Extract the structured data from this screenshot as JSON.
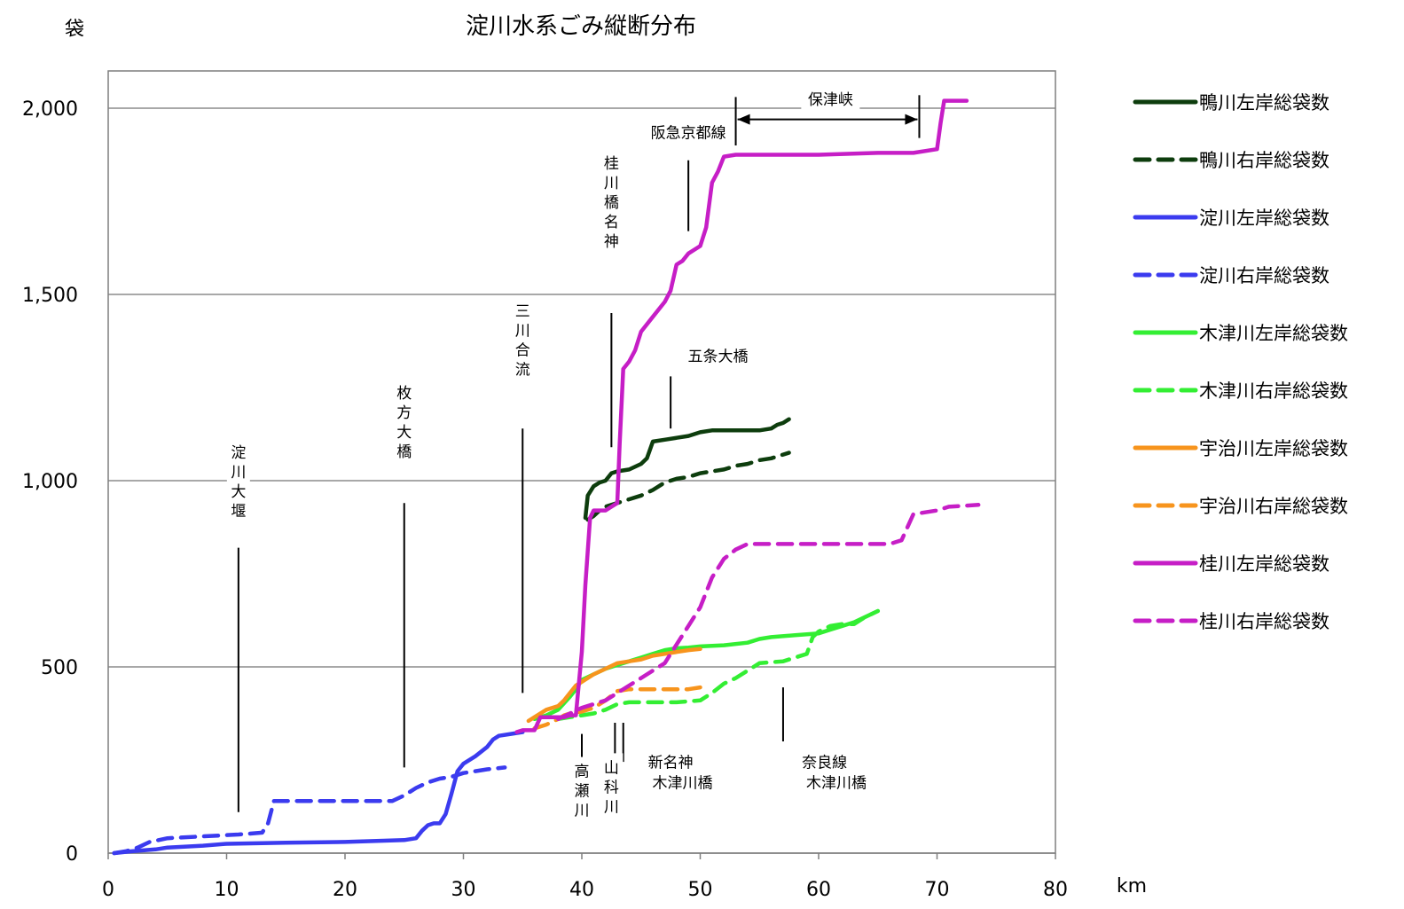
{
  "chart_data": {
    "type": "line",
    "title": "淀川水系ごみ縦断分布",
    "ylabel": "袋",
    "xlabel": "km",
    "xlim": [
      0,
      80
    ],
    "ylim": [
      0,
      2000
    ],
    "xticks": [
      0,
      10,
      20,
      30,
      40,
      50,
      60,
      70,
      80
    ],
    "yticks": [
      0,
      500,
      1000,
      1500,
      2000
    ],
    "ytick_labels": [
      "0",
      "500",
      "1,000",
      "1,500",
      "2,000"
    ],
    "grid": true,
    "legend_position": "right",
    "annotations": [
      {
        "text": "淀川大堰",
        "vertical": true,
        "x": 11,
        "label_y": 1000
      },
      {
        "text": "枚方大橋",
        "vertical": true,
        "x": 25,
        "label_y": 1160
      },
      {
        "text": "三川合流",
        "vertical": true,
        "x": 35,
        "label_y": 1380
      },
      {
        "text": "桂川橋名神",
        "vertical": true,
        "x": 42.5,
        "label_y": 1750
      },
      {
        "text": "阪急京都線",
        "vertical": false,
        "x": 49,
        "label_y": 1920
      },
      {
        "text": "五条大橋",
        "vertical": false,
        "x": 51.5,
        "label_y": 1320
      },
      {
        "text": "保津峡",
        "vertical": false,
        "x": 61,
        "label_y": 2010
      },
      {
        "text": "高瀬川",
        "vertical": true,
        "x": 40,
        "label_y": 170
      },
      {
        "text": "山科川",
        "vertical": true,
        "x": 42.5,
        "label_y": 180
      },
      {
        "text": "新名神",
        "vertical": false,
        "x": 47.5,
        "label_y": 230
      },
      {
        "text": "木津川橋",
        "vertical": false,
        "x": 48.5,
        "label_y": 175
      },
      {
        "text": "奈良線",
        "vertical": false,
        "x": 60.5,
        "label_y": 230
      },
      {
        "text": "木津川橋",
        "vertical": false,
        "x": 61.5,
        "label_y": 175
      }
    ],
    "markers": [
      {
        "x": 11,
        "y1": 110,
        "y2": 820
      },
      {
        "x": 25,
        "y1": 230,
        "y2": 940
      },
      {
        "x": 35,
        "y1": 430,
        "y2": 1140
      },
      {
        "x": 42.5,
        "y1": 1090,
        "y2": 1450
      },
      {
        "x": 49,
        "y1": 1670,
        "y2": 1860
      },
      {
        "x": 47.5,
        "y1": 1140,
        "y2": 1280
      },
      {
        "x": 40,
        "y1": 235,
        "y2": 320
      },
      {
        "x": 42.8,
        "y1": 240,
        "y2": 350
      },
      {
        "x": 43.5,
        "y1": 245,
        "y2": 350
      },
      {
        "x": 57,
        "y1": 300,
        "y2": 445
      },
      {
        "x": 53,
        "y1": 1900,
        "y2": 2030
      },
      {
        "x": 68.5,
        "y1": 1920,
        "y2": 2035
      }
    ],
    "span_arrow": {
      "x1": 53,
      "x2": 68.5,
      "y": 1970
    },
    "series": [
      {
        "name": "鴨川左岸総袋数",
        "color": "#0d3d0d",
        "dash": false,
        "x": [
          40.3,
          40.5,
          41,
          41.5,
          42,
          42.5,
          43,
          44,
          45,
          45.5,
          46,
          47,
          48,
          49,
          50,
          51,
          52,
          53,
          54,
          55,
          56,
          56.5,
          57,
          57.5
        ],
        "y": [
          900,
          960,
          985,
          995,
          1000,
          1020,
          1025,
          1030,
          1045,
          1060,
          1105,
          1110,
          1115,
          1120,
          1130,
          1135,
          1135,
          1135,
          1135,
          1135,
          1140,
          1150,
          1155,
          1165
        ]
      },
      {
        "name": "鴨川右岸総袋数",
        "color": "#0d3d0d",
        "dash": true,
        "x": [
          40.5,
          41,
          41.5,
          42,
          43,
          44,
          45,
          46,
          47,
          48,
          49,
          50,
          51,
          52,
          53,
          54,
          55,
          56,
          57,
          57.5
        ],
        "y": [
          895,
          905,
          920,
          930,
          940,
          950,
          960,
          975,
          995,
          1005,
          1010,
          1020,
          1025,
          1030,
          1040,
          1045,
          1055,
          1060,
          1070,
          1075
        ]
      },
      {
        "name": "淀川左岸総袋数",
        "color": "#3b3bef",
        "dash": false,
        "x": [
          0.5,
          2,
          4,
          5,
          8,
          10,
          15,
          20,
          25,
          26,
          26.5,
          27,
          27.5,
          28,
          28.5,
          29,
          29.5,
          30,
          31,
          32,
          32.5,
          33,
          34,
          35
        ],
        "y": [
          0,
          5,
          10,
          15,
          20,
          25,
          28,
          30,
          35,
          40,
          60,
          75,
          80,
          80,
          105,
          160,
          220,
          240,
          260,
          285,
          305,
          315,
          320,
          325
        ]
      },
      {
        "name": "淀川右岸総袋数",
        "color": "#3b3bef",
        "dash": true,
        "x": [
          0.5,
          1.5,
          2.5,
          3.5,
          5,
          8,
          11,
          13,
          13.5,
          14,
          16,
          20,
          24,
          25,
          26,
          27,
          28,
          29,
          30,
          31,
          32,
          33.5
        ],
        "y": [
          0,
          5,
          15,
          30,
          40,
          45,
          50,
          55,
          80,
          140,
          140,
          140,
          140,
          155,
          175,
          190,
          200,
          205,
          215,
          220,
          225,
          230
        ]
      },
      {
        "name": "木津川左岸総袋数",
        "color": "#33ee33",
        "dash": false,
        "x": [
          36,
          37,
          38,
          39,
          39.5,
          40,
          41,
          42,
          43,
          44,
          45,
          46,
          47,
          48,
          49,
          50,
          52,
          54,
          55,
          56,
          58,
          60,
          61,
          62,
          63,
          64,
          65
        ],
        "y": [
          360,
          370,
          385,
          420,
          440,
          465,
          480,
          495,
          505,
          515,
          525,
          535,
          545,
          550,
          552,
          555,
          558,
          565,
          575,
          580,
          585,
          590,
          600,
          610,
          620,
          635,
          650
        ]
      },
      {
        "name": "木津川右岸総袋数",
        "color": "#33ee33",
        "dash": true,
        "x": [
          38,
          40,
          41,
          42,
          43,
          44,
          46,
          48,
          50,
          51,
          52,
          53,
          54,
          55,
          57,
          59,
          59.5,
          60,
          61,
          62,
          63,
          64,
          65
        ],
        "y": [
          360,
          370,
          375,
          385,
          400,
          405,
          405,
          405,
          410,
          430,
          455,
          470,
          490,
          510,
          515,
          535,
          580,
          595,
          610,
          615,
          615,
          635,
          650
        ]
      },
      {
        "name": "宇治川左岸総袋数",
        "color": "#f7941d",
        "dash": false,
        "x": [
          35.5,
          36,
          37,
          38,
          38.5,
          39,
          39.5,
          40,
          41,
          42,
          43,
          44,
          45,
          46,
          47,
          48,
          49,
          50
        ],
        "y": [
          355,
          365,
          385,
          395,
          410,
          430,
          450,
          460,
          480,
          495,
          510,
          515,
          520,
          530,
          535,
          540,
          545,
          548
        ]
      },
      {
        "name": "宇治川右岸総袋数",
        "color": "#f7941d",
        "dash": true,
        "x": [
          36,
          37,
          38,
          38.5,
          39,
          40,
          41,
          42,
          43,
          44,
          45,
          46,
          47,
          48,
          49,
          50
        ],
        "y": [
          335,
          345,
          360,
          370,
          375,
          380,
          390,
          410,
          435,
          440,
          440,
          440,
          440,
          440,
          440,
          445
        ]
      },
      {
        "name": "桂川左岸総袋数",
        "color": "#c61ec6",
        "dash": false,
        "x": [
          34.5,
          35,
          36,
          36.5,
          37,
          38,
          38.5,
          39,
          39.5,
          40,
          40.3,
          40.7,
          41,
          41.5,
          42,
          42.5,
          43,
          43.2,
          43.5,
          44,
          44.5,
          45,
          46,
          47,
          47.5,
          48,
          48.5,
          49,
          50,
          50.5,
          51,
          51.5,
          52,
          53,
          55,
          60,
          65,
          68,
          70,
          70.3,
          70.6,
          71,
          72.5
        ],
        "y": [
          325,
          330,
          330,
          365,
          365,
          365,
          365,
          370,
          370,
          540,
          720,
          900,
          920,
          920,
          920,
          930,
          940,
          1100,
          1300,
          1320,
          1350,
          1400,
          1440,
          1480,
          1510,
          1580,
          1590,
          1610,
          1630,
          1680,
          1800,
          1830,
          1870,
          1875,
          1875,
          1875,
          1880,
          1880,
          1890,
          1960,
          2020,
          2020,
          2020
        ]
      },
      {
        "name": "桂川右岸総袋数",
        "color": "#c61ec6",
        "dash": true,
        "x": [
          38,
          39,
          40,
          41,
          42,
          43,
          44,
          45,
          46,
          47,
          48,
          49,
          50,
          51,
          52,
          53,
          54,
          56,
          60,
          64,
          66,
          67,
          68,
          69,
          70,
          71,
          73.5
        ],
        "y": [
          360,
          375,
          390,
          400,
          410,
          430,
          450,
          470,
          490,
          510,
          560,
          610,
          660,
          740,
          790,
          815,
          830,
          830,
          830,
          830,
          830,
          840,
          910,
          915,
          920,
          930,
          935
        ]
      }
    ]
  }
}
